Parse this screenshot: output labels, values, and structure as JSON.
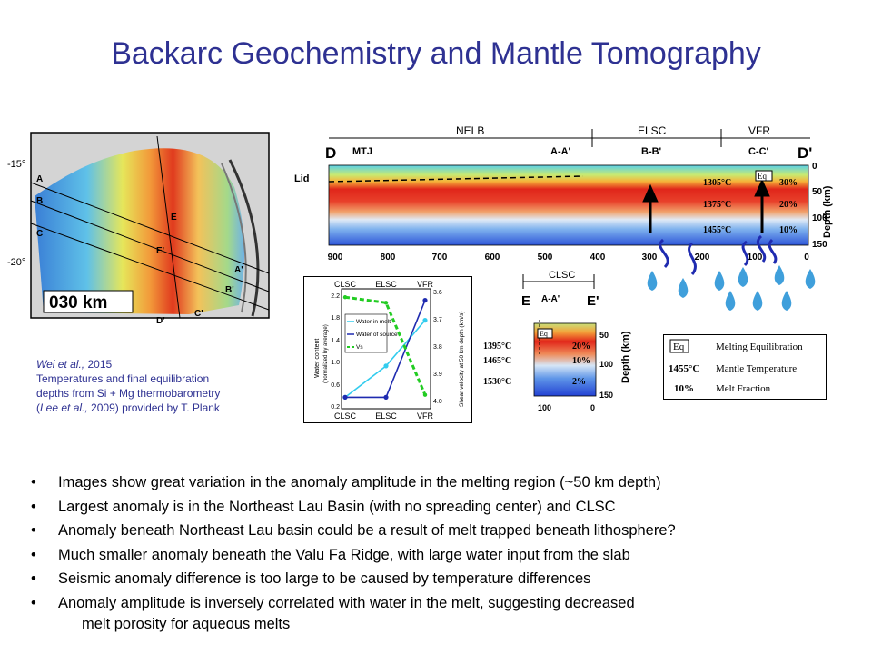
{
  "slide": {
    "title": "Backarc Geochemistry and Mantle Tomography"
  },
  "map": {
    "lat_labels": [
      "-15°",
      "-20°"
    ],
    "point_labels": [
      "A",
      "B",
      "C",
      "E",
      "E'",
      "A'",
      "B'",
      "C'",
      "D'"
    ],
    "scale_label": "030  km"
  },
  "profile_d": {
    "start_label": "D",
    "end_label": "D'",
    "segments": [
      "NELB",
      "ELSC",
      "VFR"
    ],
    "site_labels": [
      "MTJ",
      "A-A'",
      "B-B'",
      "C-C'"
    ],
    "lid_label": "Lid",
    "eq_label": "Eq",
    "temperatures": [
      "1305°C",
      "1375°C",
      "1455°C"
    ],
    "melt_fractions": [
      "30%",
      "20%",
      "10%"
    ],
    "x_ticks": [
      "900",
      "800",
      "700",
      "600",
      "500",
      "400",
      "300",
      "200",
      "100",
      "0"
    ],
    "depth_ticks": [
      "0",
      "50",
      "100",
      "150"
    ],
    "depth_label": "Depth (km)"
  },
  "water_chart": {
    "top_labels": [
      "CLSC",
      "ELSC",
      "VFR"
    ],
    "bottom_labels": [
      "CLSC",
      "ELSC",
      "VFR"
    ],
    "left_axis_label": "Water content",
    "left_axis_sub": "(normalized by average)",
    "right_axis_label": "Shear velocity at 50 km depth (km/s)",
    "left_ticks": [
      "2.2",
      "1.8",
      "1.4",
      "1.0",
      "0.6",
      "0.2"
    ],
    "right_ticks": [
      "3.6",
      "3.7",
      "3.8",
      "3.9",
      "4.0"
    ],
    "legend": [
      "Water in melt",
      "Water of source",
      "Vs"
    ],
    "colors": {
      "melt": "#33ccee",
      "source": "#1f2bb0",
      "vs": "#22cc22"
    }
  },
  "chart_data": {
    "type": "line",
    "categories": [
      "CLSC",
      "ELSC",
      "VFR"
    ],
    "series": [
      {
        "name": "Water in melt",
        "values": [
          0.4,
          0.95,
          1.75
        ]
      },
      {
        "name": "Water of source",
        "values": [
          0.4,
          0.4,
          2.1
        ]
      },
      {
        "name": "Vs",
        "values": [
          3.61,
          3.63,
          3.96
        ]
      }
    ],
    "xlabel": "",
    "ylabel": "Water content (normalized by average)",
    "y2label": "Shear velocity at 50 km depth (km/s)",
    "ylim": [
      0.2,
      2.3
    ],
    "y2lim": [
      3.58,
      4.01
    ]
  },
  "profile_e": {
    "header": "CLSC",
    "start_label": "E",
    "end_label": "E'",
    "site_label": "A-A'",
    "eq_label": "Eq",
    "temperatures": [
      "1395°C",
      "1465°C",
      "1530°C"
    ],
    "melt_fractions": [
      "20%",
      "10%",
      "2%"
    ],
    "x_ticks": [
      "100",
      "0"
    ],
    "depth_ticks": [
      "50",
      "100",
      "150"
    ],
    "depth_label": "Depth (km)"
  },
  "legend_box": {
    "rows": [
      {
        "key": "Eq",
        "text": "Melting Equilibration"
      },
      {
        "key": "1455°C",
        "text": "Mantle Temperature"
      },
      {
        "key": "10%",
        "text": "Melt Fraction"
      }
    ]
  },
  "citation": {
    "line1_author": "Wei et al.,",
    "line1_year": " 2015",
    "line2": "Temperatures and final equilibration",
    "line3": "depths from Si + Mg thermobarometry",
    "line4_open": "(",
    "line4_author": "Lee et al.,",
    "line4_rest": " 2009) provided by T. Plank"
  },
  "bullets": [
    "Images show great variation in the anomaly amplitude in the melting region (~50 km depth)",
    "Largest anomaly is in the Northeast Lau Basin (with no spreading center) and CLSC",
    "Anomaly beneath Northeast Lau basin could be a result of melt trapped beneath lithosphere?",
    "Much smaller anomaly beneath the Valu Fa Ridge, with large water input from the slab",
    "Seismic anomaly difference is too large to be caused by temperature differences",
    "Anomaly amplitude is inversely correlated with water in the melt, suggesting decreased"
  ],
  "bullet_continuation": "melt porosity for aqueous melts"
}
